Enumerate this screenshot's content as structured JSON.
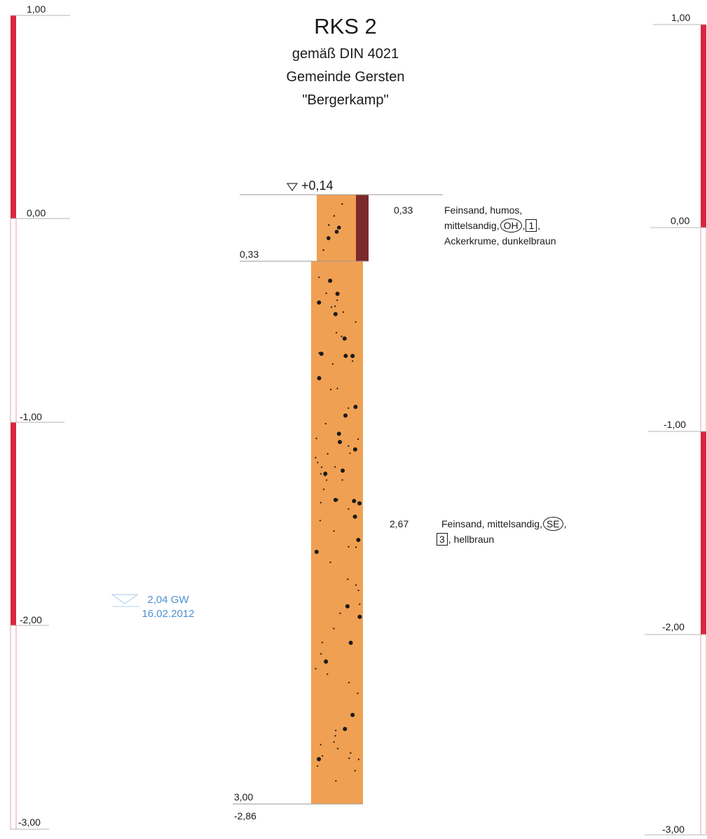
{
  "header": {
    "title": "RKS 2",
    "line1": "gemäß DIN 4021",
    "line2": "Gemeinde Gersten",
    "line3": "\"Bergerkamp\""
  },
  "colors": {
    "scale_red": "#d9263f",
    "scale_white": "#ffffff",
    "scale_outline": "#e7a1aa",
    "sand": "#f0a052",
    "humus_strip": "#7a2a2a",
    "dots": "#1a1a1a",
    "gw_blue": "#4d8fd0",
    "rule": "#b5b5b5"
  },
  "scale_left": {
    "labels": [
      "1,00",
      "0,00",
      "-1,00",
      "-2,00",
      "-3,00"
    ]
  },
  "scale_right": {
    "labels": [
      "1,00",
      "0,00",
      "-1,00",
      "-2,00",
      "-3,00"
    ]
  },
  "borehole": {
    "top_level_label": "+0,14",
    "top_marker_icon": "triangle-down-icon",
    "layers": [
      {
        "bottom_depth_label": "0,33",
        "thickness_label": "0,33",
        "desc_line1": "Feinsand, humos,",
        "desc_line2_prefix": "mittelsandig,",
        "soil_group": "OH",
        "sep": ",",
        "class_no": "1",
        "desc_line2_suffix": ",",
        "desc_line3": "Ackerkrume, dunkelbraun"
      },
      {
        "bottom_depth_label": "3,00",
        "thickness_label": "2,67",
        "desc_line1_prefix": "Feinsand, mittelsandig,",
        "soil_group": "SE",
        "desc_line1_suffix": ",",
        "class_no": "3",
        "desc_line2_suffix": ", hellbraun"
      }
    ],
    "bottom_level_label": "-2,86"
  },
  "groundwater": {
    "label": "2,04 GW",
    "date": "16.02.2012"
  }
}
